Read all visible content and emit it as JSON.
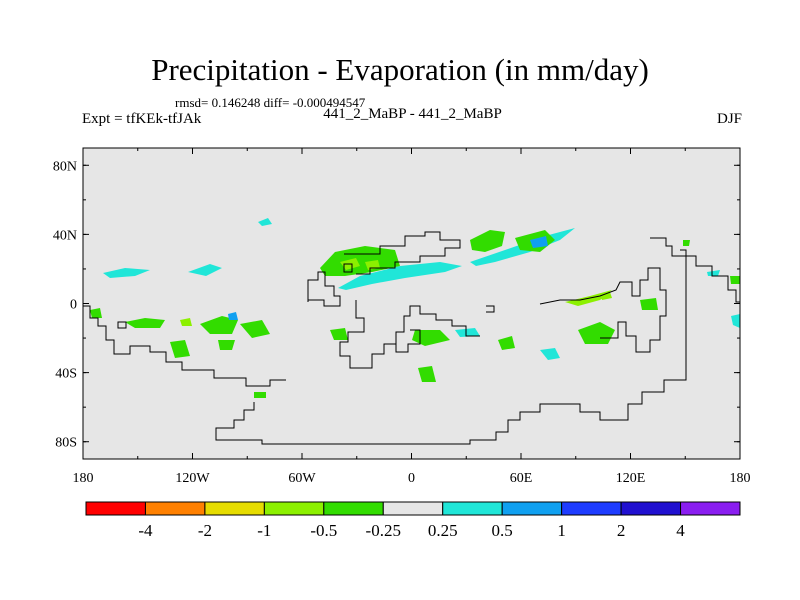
{
  "chart_data": {
    "type": "heatmap",
    "title": "Precipitation - Evaporation (in mm/day)",
    "stats_label": "rmsd= 0.146248 diff= -0.000494547",
    "left_label": "Expt = tfKEk-tfJAk",
    "center_label": "441_2_MaBP - 441_2_MaBP",
    "right_label": "DJF",
    "x_ticks": [
      "180",
      "120W",
      "60W",
      "0",
      "60E",
      "120E",
      "180"
    ],
    "y_ticks": [
      "80N",
      "40N",
      "0",
      "40S",
      "80S"
    ],
    "xlim": [
      -180,
      180
    ],
    "ylim": [
      -90,
      90
    ],
    "colorbar": {
      "labels": [
        "-4",
        "-2",
        "-1",
        "-0.5",
        "-0.25",
        "0.25",
        "0.5",
        "1",
        "2",
        "4"
      ],
      "colors": [
        "#ff0000",
        "#ff8000",
        "#e6dc00",
        "#8cf000",
        "#32dc00",
        "#e6e6e6",
        "#20e6d8",
        "#10a0f0",
        "#1e3cff",
        "#2010d0",
        "#8a1ef0"
      ]
    },
    "background_color": "#e6e6e6"
  }
}
